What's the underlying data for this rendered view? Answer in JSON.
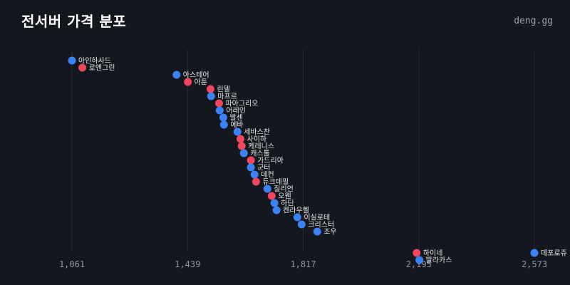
{
  "header": {
    "title": "전서버 가격 분포",
    "brand": "deng.gg"
  },
  "colors": {
    "blue": "#3b82f6",
    "red": "#f0475e",
    "grid": "#252a33",
    "background": "#14171d"
  },
  "chart_data": {
    "type": "scatter",
    "title": "전서버 가격 분포",
    "xlabel": "",
    "ylabel": "",
    "xlim": [
      1061,
      2573
    ],
    "xticks": [
      "1,061",
      "1,439",
      "1,817",
      "2,195",
      "2,573"
    ],
    "xtick_values": [
      1061,
      1439,
      1817,
      2195,
      2573
    ],
    "grid": "vertical",
    "points": [
      {
        "label": "아인하사드",
        "x": 1061,
        "color": "blue"
      },
      {
        "label": "로엔그린",
        "x": 1095,
        "color": "red"
      },
      {
        "label": "아스테어",
        "x": 1403,
        "color": "blue"
      },
      {
        "label": "아툰",
        "x": 1440,
        "color": "red"
      },
      {
        "label": "린델",
        "x": 1514,
        "color": "red"
      },
      {
        "label": "마프르",
        "x": 1516,
        "color": "blue"
      },
      {
        "label": "파아그리오",
        "x": 1542,
        "color": "red"
      },
      {
        "label": "어레인",
        "x": 1544,
        "color": "blue"
      },
      {
        "label": "발센",
        "x": 1556,
        "color": "blue"
      },
      {
        "label": "에바",
        "x": 1558,
        "color": "blue"
      },
      {
        "label": "세바스찬",
        "x": 1602,
        "color": "blue"
      },
      {
        "label": "사이하",
        "x": 1612,
        "color": "red"
      },
      {
        "label": "케레니스",
        "x": 1616,
        "color": "red"
      },
      {
        "label": "캐스톨",
        "x": 1623,
        "color": "blue"
      },
      {
        "label": "가드리아",
        "x": 1646,
        "color": "red"
      },
      {
        "label": "군터",
        "x": 1646,
        "color": "blue"
      },
      {
        "label": "데컨",
        "x": 1658,
        "color": "blue"
      },
      {
        "label": "듀크데필",
        "x": 1663,
        "color": "red"
      },
      {
        "label": "질리언",
        "x": 1700,
        "color": "blue"
      },
      {
        "label": "오웬",
        "x": 1714,
        "color": "red"
      },
      {
        "label": "하딘",
        "x": 1723,
        "color": "blue"
      },
      {
        "label": "켄라우헬",
        "x": 1730,
        "color": "blue"
      },
      {
        "label": "이실로테",
        "x": 1798,
        "color": "blue"
      },
      {
        "label": "크리스터",
        "x": 1812,
        "color": "blue"
      },
      {
        "label": "조우",
        "x": 1863,
        "color": "blue"
      },
      {
        "label": "하이네",
        "x": 2188,
        "color": "red"
      },
      {
        "label": "발라카스",
        "x": 2197,
        "color": "blue"
      },
      {
        "label": "데포로쥬",
        "x": 2573,
        "color": "blue"
      }
    ]
  }
}
